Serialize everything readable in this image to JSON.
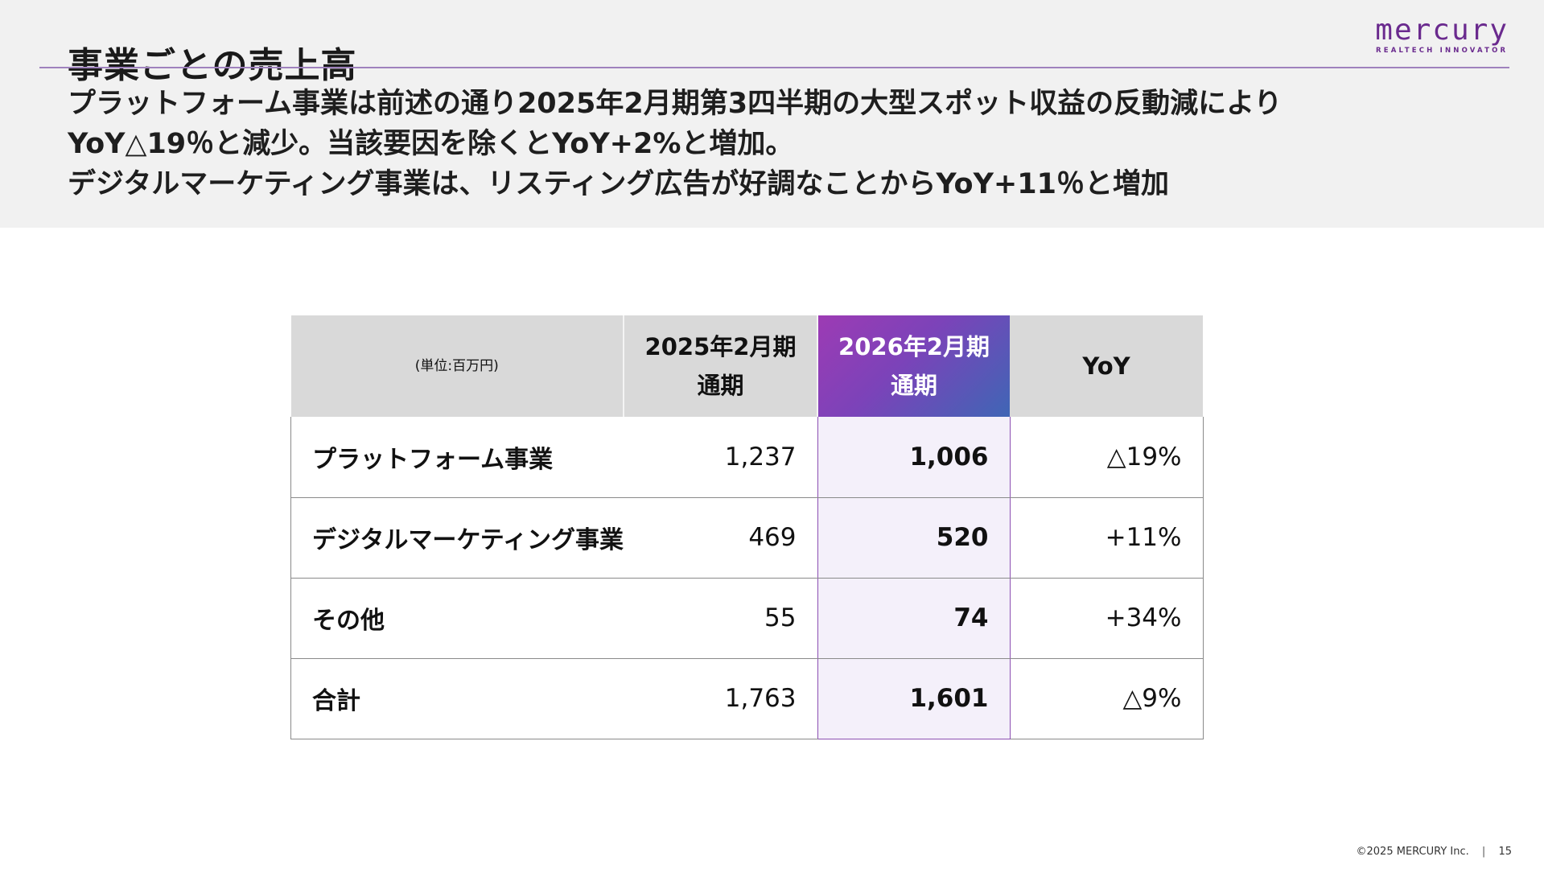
{
  "slide": {
    "title": "事業ごとの売上高",
    "logo_main": "mercury",
    "logo_sub": "REALTECH INNOVATOR",
    "summary_lines": [
      "プラットフォーム事業は前述の通り2025年2月期第3四半期の大型スポット収益の反動減により",
      "YoY△19％と減少。当該要因を除くとYoY+2%と増加。",
      "デジタルマーケティング事業は、リスティング広告が好調なことからYoY+11％と増加"
    ]
  },
  "table": {
    "unit_label": "(単位:百万円)",
    "col_prev_line1": "2025年2月期",
    "col_prev_line2": "通期",
    "col_cur_line1": "2026年2月期",
    "col_cur_line2": "通期",
    "col_yoy": "YoY",
    "rows": [
      {
        "segment": "プラットフォーム事業",
        "prev": "1,237",
        "cur": "1,006",
        "yoy": "△19%"
      },
      {
        "segment": "デジタルマーケティング事業",
        "prev": "469",
        "cur": "520",
        "yoy": "+11%"
      },
      {
        "segment": "その他",
        "prev": "55",
        "cur": "74",
        "yoy": "+34%"
      },
      {
        "segment": "合計",
        "prev": "1,763",
        "cur": "1,601",
        "yoy": "△9%"
      }
    ]
  },
  "footer": {
    "copyright": "©2025 MERCURY Inc.",
    "separator": "|",
    "page_number": "15"
  },
  "colors": {
    "accent_purple": "#6a2a8e",
    "header_gradient_start": "#9d3bb4",
    "header_gradient_end": "#3f66b5",
    "highlight_column_bg": "#f4f0fa"
  }
}
